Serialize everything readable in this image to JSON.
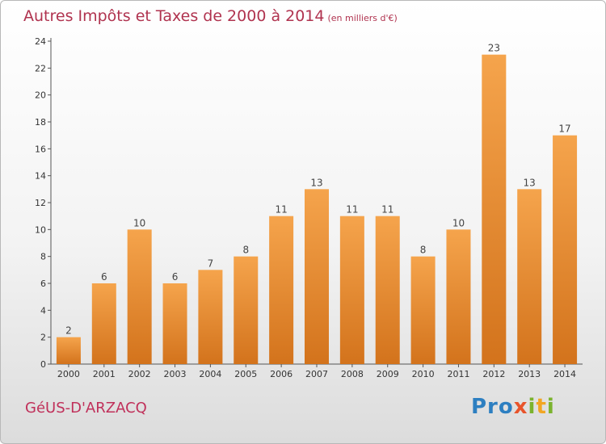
{
  "title": "Autres Impôts et Taxes de 2000 à 2014",
  "unit": "(en milliers d'€)",
  "commune": "GéUS-D'ARZACQ",
  "logo": {
    "p1": "Pro",
    "p2": "x",
    "p3": "i",
    "p4": "t",
    "p5": "i"
  },
  "colors": {
    "bar_top": "#f5a44c",
    "bar_bottom": "#d3731c",
    "title": "#b0334f"
  },
  "chart_data": {
    "type": "bar",
    "categories": [
      "2000",
      "2001",
      "2002",
      "2003",
      "2004",
      "2005",
      "2006",
      "2007",
      "2008",
      "2009",
      "2010",
      "2011",
      "2012",
      "2013",
      "2014"
    ],
    "values": [
      2,
      6,
      10,
      6,
      7,
      8,
      11,
      13,
      11,
      11,
      8,
      10,
      23,
      13,
      17
    ],
    "yticks": [
      0,
      2,
      4,
      6,
      8,
      10,
      12,
      14,
      16,
      18,
      20,
      22,
      24
    ],
    "ylim": [
      0,
      24
    ],
    "grid": false
  }
}
